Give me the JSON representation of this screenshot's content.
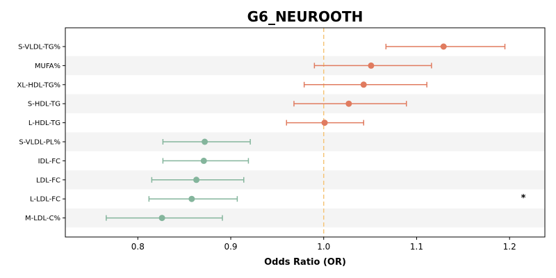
{
  "chart_data": {
    "type": "forest",
    "title": "G6_NEUROOTH",
    "xlabel": "Odds Ratio (OR)",
    "xlim": [
      0.722,
      1.238
    ],
    "xticks": [
      0.8,
      0.9,
      1.0,
      1.1,
      1.2
    ],
    "xtick_labels": [
      "0.8",
      "0.9",
      "1.0",
      "1.1",
      "1.2"
    ],
    "reference_line": 1.0,
    "reference_color": "#f5c57a",
    "positive_color": "#e07b5f",
    "negative_color": "#84b59c",
    "stripe_color": "#f4f4f4",
    "rows": [
      {
        "label": "S-VLDL-TG%",
        "or": 1.129,
        "lower": 1.067,
        "upper": 1.195,
        "direction": "positive",
        "annotation": ""
      },
      {
        "label": "MUFA%",
        "or": 1.051,
        "lower": 0.99,
        "upper": 1.116,
        "direction": "positive",
        "annotation": ""
      },
      {
        "label": "XL-HDL-TG%",
        "or": 1.043,
        "lower": 0.979,
        "upper": 1.111,
        "direction": "positive",
        "annotation": ""
      },
      {
        "label": "S-HDL-TG",
        "or": 1.027,
        "lower": 0.968,
        "upper": 1.089,
        "direction": "positive",
        "annotation": ""
      },
      {
        "label": "L-HDL-TG",
        "or": 1.001,
        "lower": 0.96,
        "upper": 1.043,
        "direction": "positive",
        "annotation": ""
      },
      {
        "label": "S-VLDL-PL%",
        "or": 0.872,
        "lower": 0.827,
        "upper": 0.921,
        "direction": "negative",
        "annotation": ""
      },
      {
        "label": "IDL-FC",
        "or": 0.871,
        "lower": 0.827,
        "upper": 0.919,
        "direction": "negative",
        "annotation": ""
      },
      {
        "label": "LDL-FC",
        "or": 0.863,
        "lower": 0.815,
        "upper": 0.914,
        "direction": "negative",
        "annotation": ""
      },
      {
        "label": "L-LDL-FC",
        "or": 0.858,
        "lower": 0.812,
        "upper": 0.907,
        "direction": "negative",
        "annotation": "*"
      },
      {
        "label": "M-LDL-C%",
        "or": 0.826,
        "lower": 0.766,
        "upper": 0.891,
        "direction": "negative",
        "annotation": ""
      }
    ]
  }
}
